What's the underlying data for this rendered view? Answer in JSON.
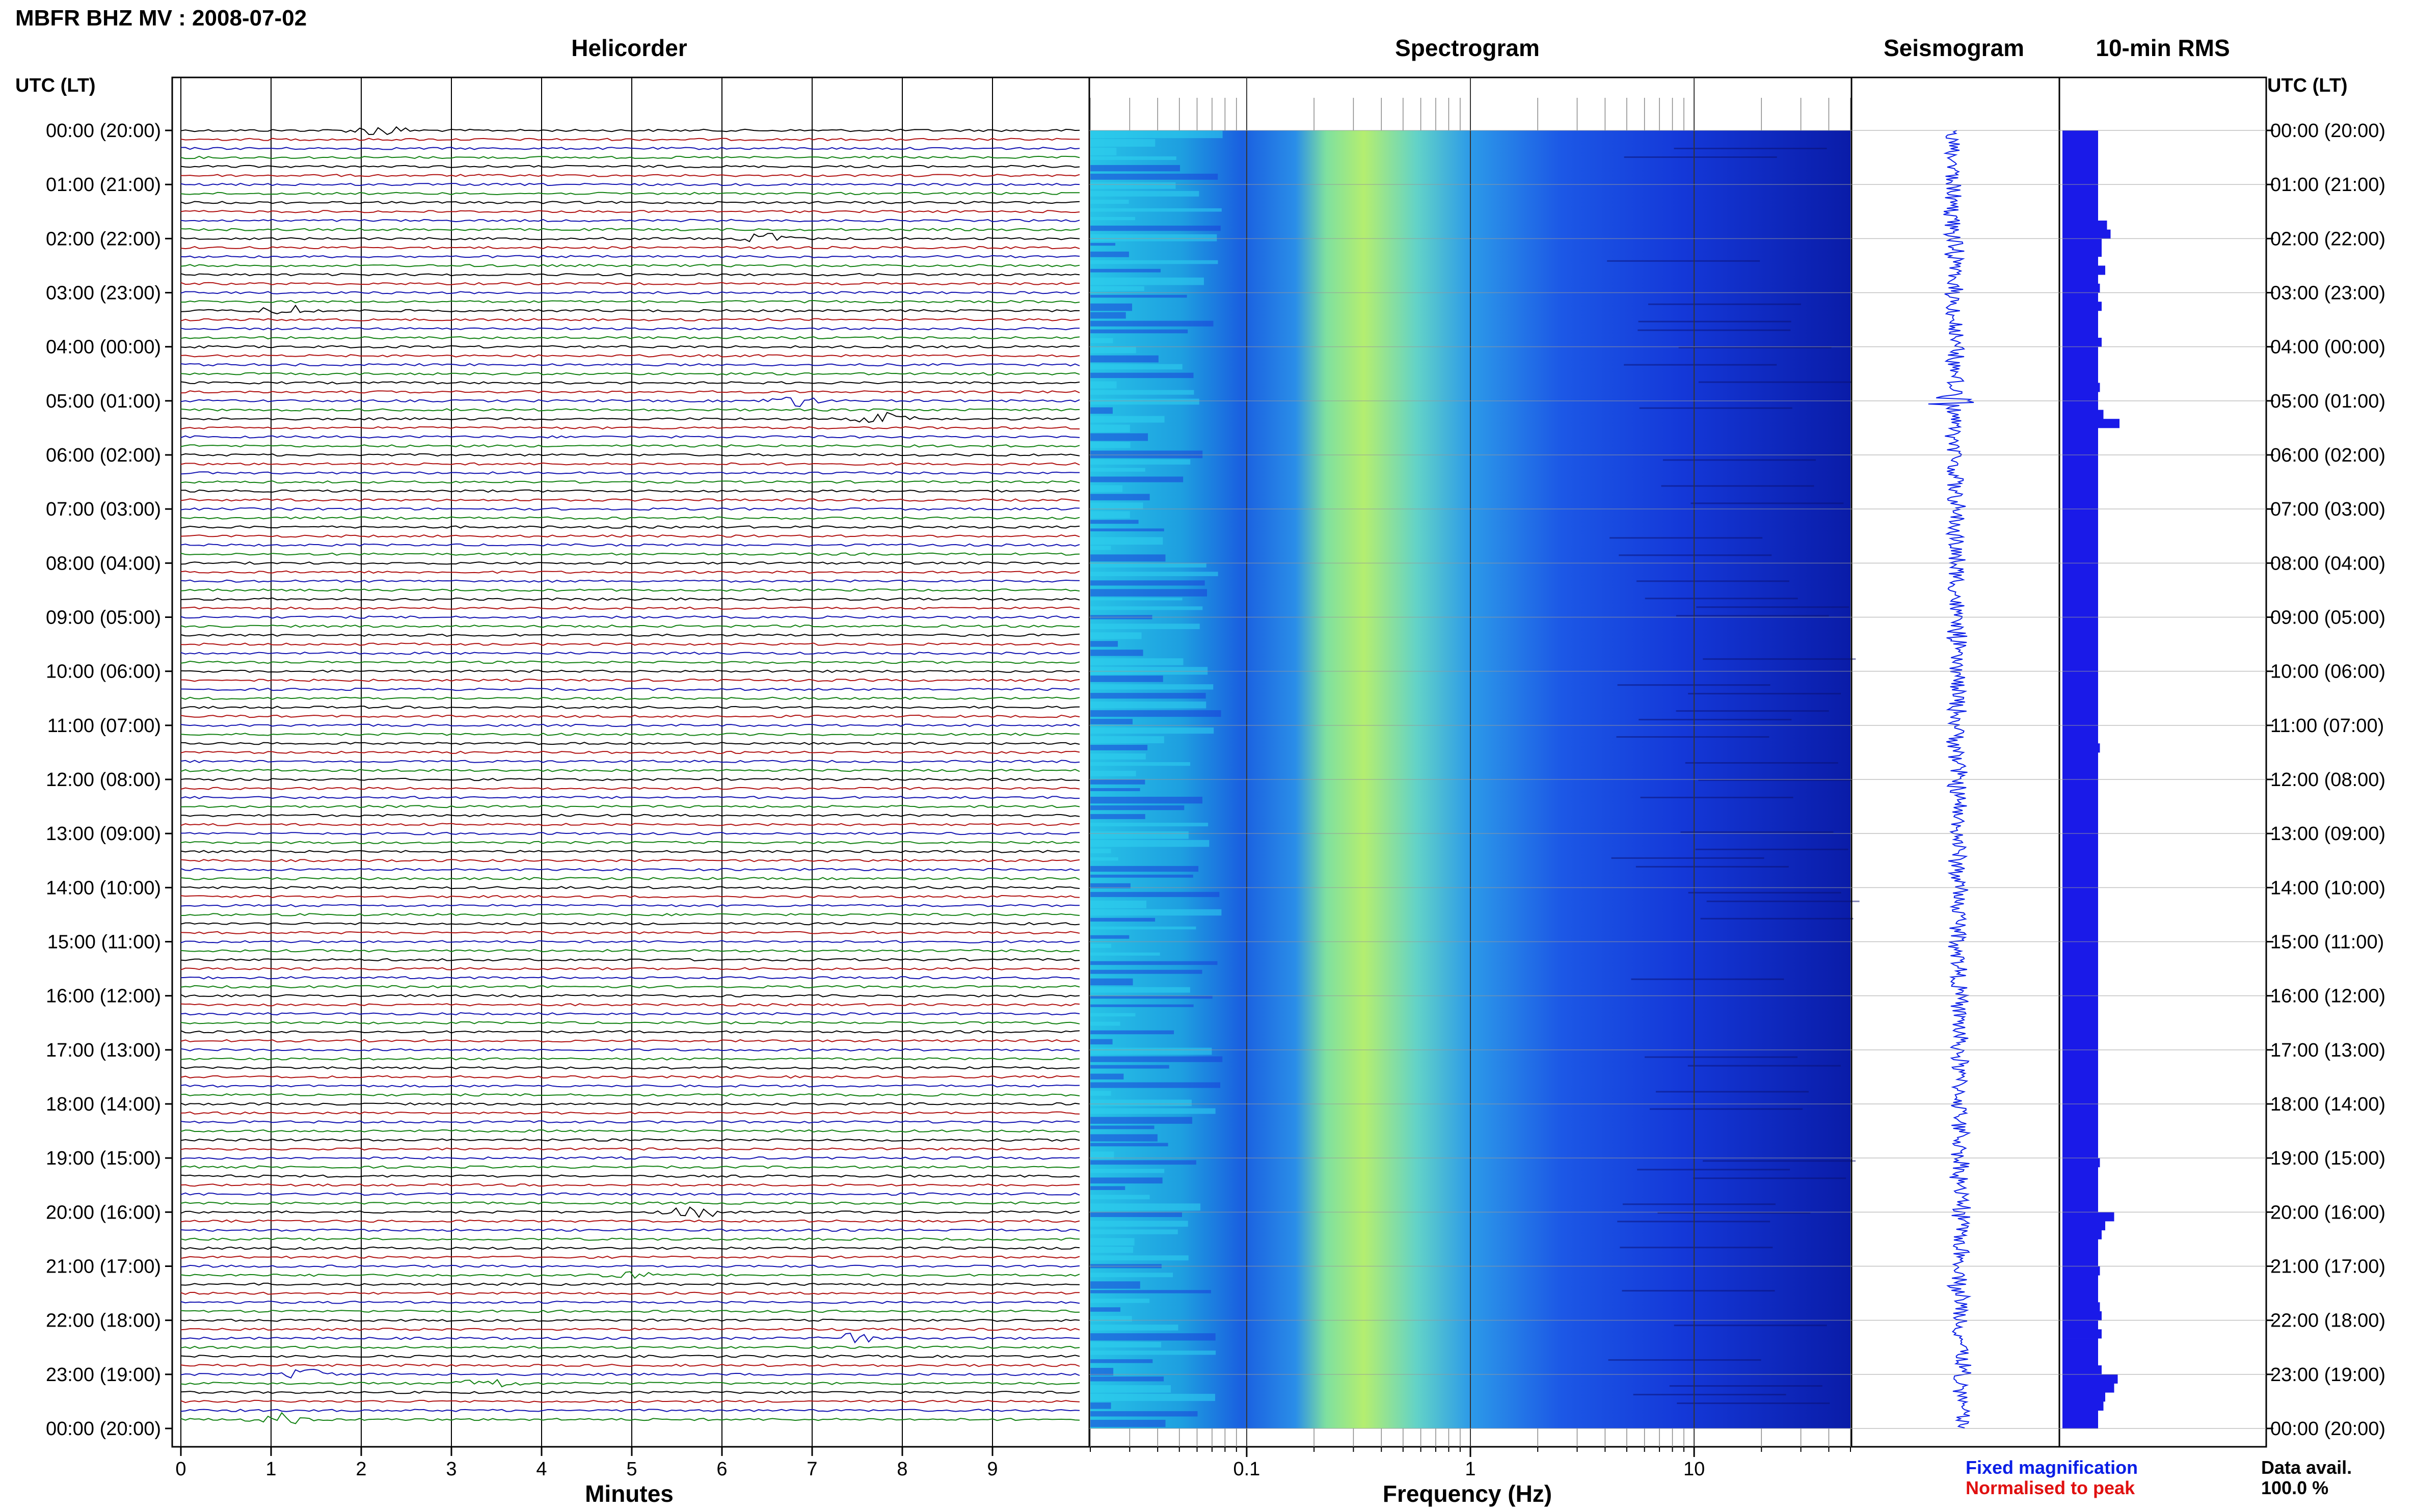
{
  "page": {
    "title": "MBFR BHZ MV : 2008-07-02",
    "utc_lt_label": "UTC (LT)",
    "data_avail_label": "Data avail.",
    "data_avail_value": "100.0 %",
    "legend_fixed": "Fixed magnification",
    "legend_normalised": "Normalised to peak"
  },
  "colors": {
    "fixed": "#0a1ee6",
    "normalised": "#e01010",
    "trace_cycle": [
      "#000000",
      "#b01010",
      "#1010b0",
      "#108010"
    ],
    "rms_bar": "#1a1ae8"
  },
  "chart_data": [
    {
      "type": "line",
      "title": "Helicorder",
      "xlabel": "Minutes",
      "x_ticks": [
        "0",
        "1",
        "2",
        "3",
        "4",
        "5",
        "6",
        "7",
        "8",
        "9"
      ],
      "xlim": [
        0,
        10
      ],
      "y_labels": [
        "00:00 (20:00)",
        "01:00 (21:00)",
        "02:00 (22:00)",
        "03:00 (23:00)",
        "04:00 (00:00)",
        "05:00 (01:00)",
        "06:00 (02:00)",
        "07:00 (03:00)",
        "08:00 (04:00)",
        "09:00 (05:00)",
        "10:00 (06:00)",
        "11:00 (07:00)",
        "12:00 (08:00)",
        "13:00 (09:00)",
        "14:00 (10:00)",
        "15:00 (11:00)",
        "16:00 (12:00)",
        "17:00 (13:00)",
        "18:00 (14:00)",
        "19:00 (15:00)",
        "20:00 (16:00)",
        "21:00 (17:00)",
        "22:00 (18:00)",
        "23:00 (19:00)",
        "00:00 (20:00)"
      ],
      "lines_per_hour": 6,
      "grid": true,
      "events": [
        {
          "hour": 0.0,
          "minute": 2.2,
          "color": 0
        },
        {
          "hour": 2.0,
          "minute": 6.5,
          "color": 1
        },
        {
          "hour": 3.3,
          "minute": 1.2,
          "color": 0
        },
        {
          "hour": 5.0,
          "minute": 6.8,
          "color": 1
        },
        {
          "hour": 5.3,
          "minute": 7.8,
          "color": 0
        },
        {
          "hour": 20.0,
          "minute": 5.7,
          "color": 0
        },
        {
          "hour": 21.2,
          "minute": 4.9,
          "color": 1
        },
        {
          "hour": 22.3,
          "minute": 7.4,
          "color": 2
        },
        {
          "hour": 23.0,
          "minute": 1.4,
          "color": 2
        },
        {
          "hour": 23.2,
          "minute": 3.4,
          "color": 3
        },
        {
          "hour": 23.8,
          "minute": 1.1,
          "color": 3
        }
      ]
    },
    {
      "type": "heatmap",
      "title": "Spectrogram",
      "xlabel": "Frequency (Hz)",
      "x_scale": "log",
      "xlim": [
        0.02,
        50
      ],
      "x_ticks": [
        "0.1",
        "1",
        "10"
      ],
      "peak_band_hz": [
        0.2,
        0.5
      ]
    },
    {
      "type": "line",
      "title": "Seismogram",
      "spikes": [
        {
          "hour": 5.0,
          "amplitude": 1.0
        },
        {
          "hour": 20.0,
          "amplitude": 0.45
        },
        {
          "hour": 21.4,
          "amplitude": 0.4
        },
        {
          "hour": 23.0,
          "amplitude": 0.5
        }
      ]
    },
    {
      "type": "bar",
      "title": "10-min RMS",
      "values": [
        1.0,
        1.0,
        1.0,
        1.0,
        1.0,
        1.0,
        1.0,
        1.0,
        1.0,
        1.0,
        1.25,
        1.35,
        1.1,
        1.1,
        1.0,
        1.2,
        1.0,
        1.05,
        1.0,
        1.1,
        1.0,
        1.0,
        1.0,
        1.1,
        1.0,
        1.0,
        1.0,
        1.0,
        1.05,
        1.0,
        1.0,
        1.15,
        1.6,
        1.0,
        1.0,
        1.0,
        1.0,
        1.0,
        1.0,
        1.0,
        1.0,
        1.0,
        1.0,
        1.0,
        1.0,
        1.0,
        1.0,
        1.0,
        1.0,
        1.0,
        1.0,
        1.0,
        1.0,
        1.0,
        1.0,
        1.0,
        1.0,
        1.0,
        1.0,
        1.0,
        1.0,
        1.0,
        1.0,
        1.0,
        1.0,
        1.0,
        1.0,
        1.0,
        1.05,
        1.0,
        1.0,
        1.0,
        1.0,
        1.0,
        1.0,
        1.0,
        1.0,
        1.0,
        1.0,
        1.0,
        1.0,
        1.0,
        1.0,
        1.0,
        1.0,
        1.0,
        1.0,
        1.0,
        1.0,
        1.0,
        1.0,
        1.0,
        1.0,
        1.0,
        1.0,
        1.0,
        1.0,
        1.0,
        1.0,
        1.0,
        1.0,
        1.0,
        1.0,
        1.0,
        1.0,
        1.0,
        1.0,
        1.0,
        1.0,
        1.0,
        1.0,
        1.0,
        1.0,
        1.0,
        1.05,
        1.0,
        1.0,
        1.0,
        1.0,
        1.0,
        1.45,
        1.2,
        1.1,
        1.0,
        1.0,
        1.0,
        1.05,
        1.0,
        1.0,
        1.0,
        1.05,
        1.1,
        1.0,
        1.1,
        1.0,
        1.0,
        1.0,
        1.1,
        1.55,
        1.45,
        1.2,
        1.15,
        1.0,
        1.0
      ]
    }
  ]
}
